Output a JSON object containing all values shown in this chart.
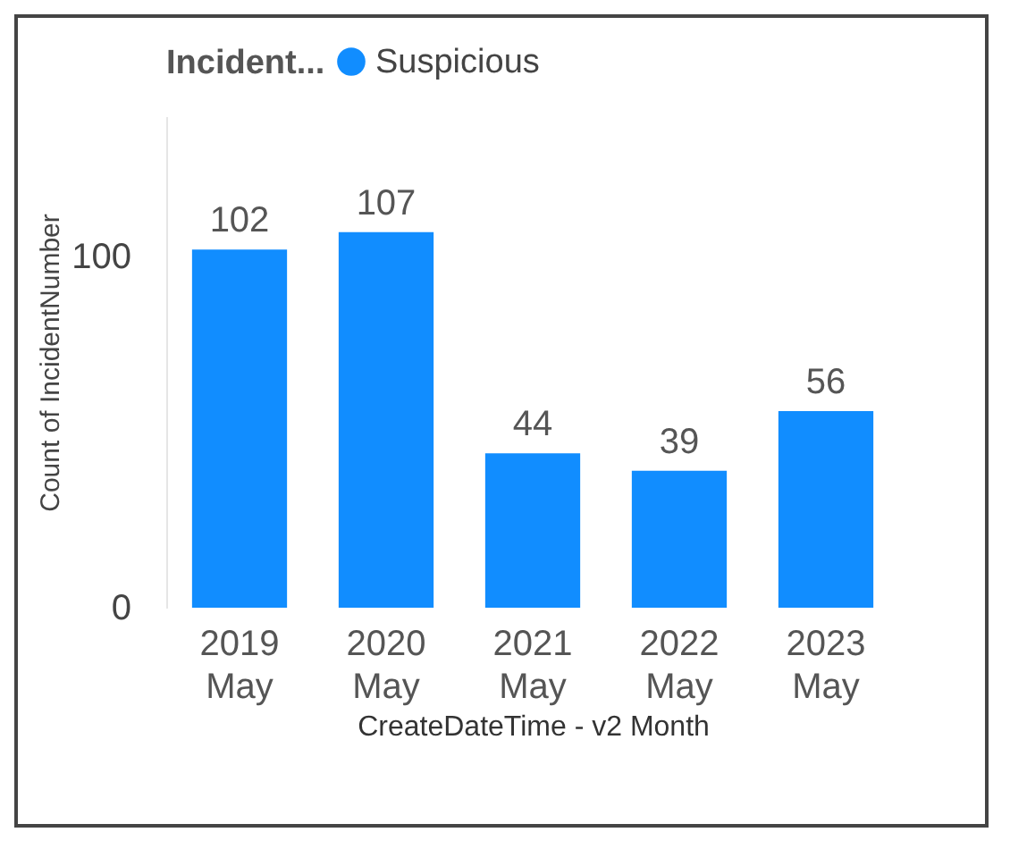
{
  "chart_data": {
    "type": "bar",
    "legend_title": "Incident...",
    "xlabel": "CreateDateTime - v2 Month",
    "ylabel": "Count of IncidentNumber",
    "categories": [
      "2019 May",
      "2020 May",
      "2021 May",
      "2022 May",
      "2023 May"
    ],
    "series": [
      {
        "name": "Suspicious",
        "color": "#118dff",
        "values": [
          102,
          107,
          44,
          39,
          56
        ]
      }
    ],
    "ylim": [
      0,
      140
    ],
    "yticks": [
      0,
      100
    ],
    "data_labels": true,
    "legend": "top left",
    "grid": false
  }
}
